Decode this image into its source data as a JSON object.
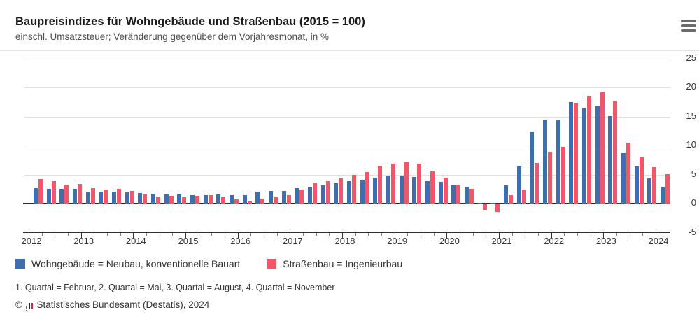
{
  "header": {
    "title": "Baupreisindizes für Wohngebäude und Straßenbau (2015 = 100)",
    "subtitle": "einschl. Umsatzsteuer; Veränderung gegenüber dem Vorjahresmonat, in %"
  },
  "menu": {
    "icon": "hamburger-icon"
  },
  "chart_data": {
    "type": "bar",
    "title": "Baupreisindizes für Wohngebäude und Straßenbau (2015 = 100)",
    "subtitle": "einschl. Umsatzsteuer; Veränderung gegenüber dem Vorjahresmonat, in %",
    "categories": [
      "2012-Q1",
      "2012-Q2",
      "2012-Q3",
      "2012-Q4",
      "2013-Q1",
      "2013-Q2",
      "2013-Q3",
      "2013-Q4",
      "2014-Q1",
      "2014-Q2",
      "2014-Q3",
      "2014-Q4",
      "2015-Q1",
      "2015-Q2",
      "2015-Q3",
      "2015-Q4",
      "2016-Q1",
      "2016-Q2",
      "2016-Q3",
      "2016-Q4",
      "2017-Q1",
      "2017-Q2",
      "2017-Q3",
      "2017-Q4",
      "2018-Q1",
      "2018-Q2",
      "2018-Q3",
      "2018-Q4",
      "2019-Q1",
      "2019-Q2",
      "2019-Q3",
      "2019-Q4",
      "2020-Q1",
      "2020-Q2",
      "2020-Q3",
      "2020-Q4",
      "2021-Q1",
      "2021-Q2",
      "2021-Q3",
      "2021-Q4",
      "2022-Q1",
      "2022-Q2",
      "2022-Q3",
      "2022-Q4",
      "2023-Q1",
      "2023-Q2",
      "2023-Q3",
      "2023-Q4",
      "2024-Q1"
    ],
    "series": [
      {
        "name": "Wohngebäude = Neubau, konventionelle Bauart",
        "key": "wohngebaeude",
        "color": "#3C6EB0",
        "values": [
          2.7,
          2.5,
          2.5,
          2.5,
          2.1,
          2.0,
          2.0,
          1.9,
          1.8,
          1.7,
          1.6,
          1.6,
          1.5,
          1.5,
          1.6,
          1.4,
          1.5,
          2.1,
          2.2,
          2.2,
          2.7,
          2.8,
          3.1,
          3.5,
          3.9,
          4.1,
          4.4,
          4.8,
          4.8,
          4.6,
          3.9,
          3.7,
          3.3,
          2.9,
          0.1,
          0.1,
          3.1,
          6.4,
          12.4,
          14.4,
          14.3,
          17.5,
          16.4,
          16.8,
          15.1,
          8.8,
          6.4,
          4.3,
          2.8
        ]
      },
      {
        "name": "Straßenbau = Ingenieurbau",
        "key": "strassenbau",
        "color": "#F2566A",
        "values": [
          4.2,
          3.8,
          3.2,
          3.4,
          2.6,
          2.3,
          2.5,
          2.2,
          1.6,
          1.2,
          1.3,
          1.1,
          1.3,
          1.4,
          1.2,
          0.7,
          0.5,
          0.8,
          1.1,
          1.5,
          2.4,
          3.6,
          3.9,
          4.3,
          5.0,
          5.4,
          6.5,
          6.9,
          7.1,
          6.9,
          5.5,
          4.4,
          3.2,
          2.5,
          -1.0,
          -1.3,
          1.5,
          2.4,
          7.0,
          8.9,
          9.7,
          17.3,
          18.5,
          19.2,
          17.7,
          10.5,
          8.1,
          6.3,
          5.1
        ]
      }
    ],
    "ylim": [
      -5,
      25
    ],
    "yticks": [
      25,
      20,
      15,
      10,
      5,
      0,
      -5
    ],
    "xtick_labels": [
      "2012",
      "2013",
      "2014",
      "2015",
      "2016",
      "2017",
      "2018",
      "2019",
      "2020",
      "2021",
      "2022",
      "2023",
      "2024"
    ],
    "baseline": 0,
    "grid": "horizontal",
    "legend_position": "bottom"
  },
  "legend": {
    "items": [
      {
        "label": "Wohngebäude = Neubau, konventionelle Bauart",
        "color": "#3C6EB0"
      },
      {
        "label": "Straßenbau = Ingenieurbau",
        "color": "#F2566A"
      }
    ]
  },
  "footnote": "1. Quartal = Februar, 2. Quartal = Mai, 3. Quartal = August, 4. Quartal = November",
  "source": {
    "prefix": "©",
    "icon": "destatis-logo-icon",
    "text": "Statistisches Bundesamt (Destatis), 2024"
  }
}
